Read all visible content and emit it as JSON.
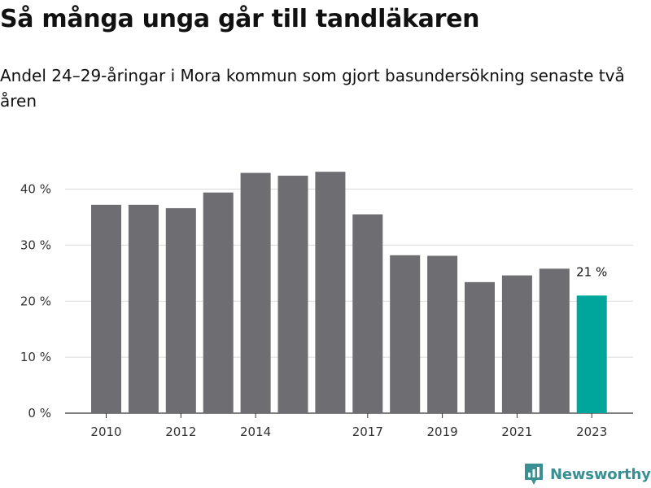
{
  "title": "Så många unga går till tandläkaren",
  "subtitle": "Andel 24–29-åringar i Mora kommun som gjort basundersökning senaste två åren",
  "brand": {
    "name": "Newsworthy",
    "icon": "newsworthy-logo-icon",
    "color": "#3a8f92"
  },
  "colors": {
    "bar": "#6e6d72",
    "highlight": "#00a59b",
    "grid": "#d9d9d9",
    "axis": "#333333"
  },
  "chart_data": {
    "type": "bar",
    "years": [
      2010,
      2011,
      2012,
      2013,
      2014,
      2015,
      2016,
      2017,
      2018,
      2019,
      2020,
      2021,
      2022,
      2023
    ],
    "values": [
      37.2,
      37.2,
      36.6,
      39.4,
      42.9,
      42.4,
      43.1,
      35.5,
      28.2,
      28.1,
      23.4,
      24.6,
      25.8,
      21.0
    ],
    "x_tick_labels": [
      "2010",
      "2012",
      "2014",
      "2017",
      "2019",
      "2021",
      "2023"
    ],
    "y_ticks": [
      0,
      10,
      20,
      30,
      40
    ],
    "y_tick_labels": [
      "0 %",
      "10 %",
      "20 %",
      "30 %",
      "40 %"
    ],
    "ylim": [
      0,
      44
    ],
    "highlight_index": 13,
    "highlight_label": "21 %",
    "grid": true,
    "xlabel": "",
    "ylabel": ""
  }
}
